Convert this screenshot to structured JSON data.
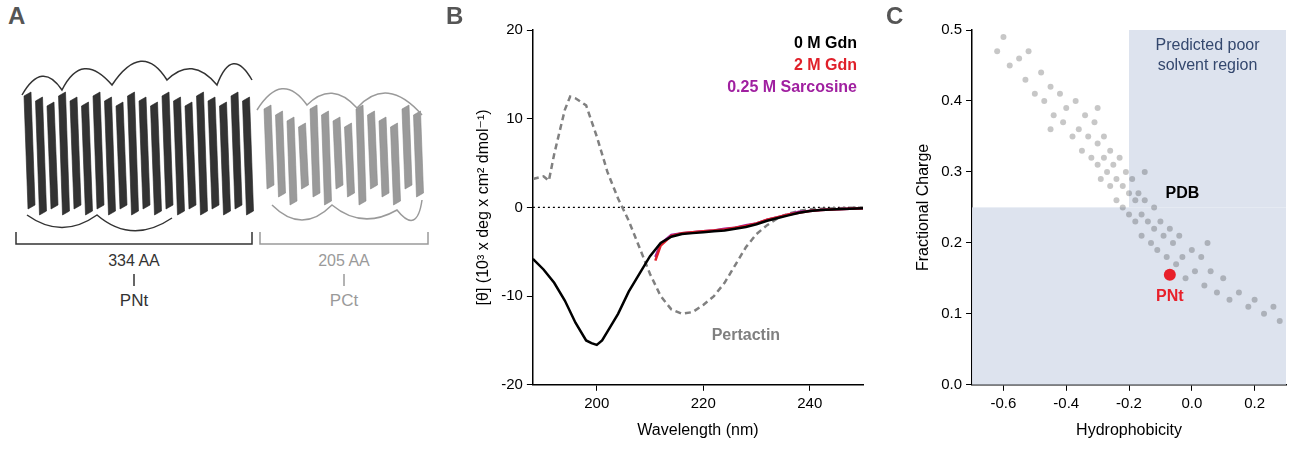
{
  "panel_A": {
    "letter": "A",
    "segments": [
      {
        "length_label": "334 AA",
        "name": "PNt",
        "color": "#333333"
      },
      {
        "length_label": "205 AA",
        "name": "PCt",
        "color": "#9a9a9a"
      }
    ]
  },
  "chart_data": [
    {
      "letter": "B",
      "type": "line",
      "x_label": "Wavelength (nm)",
      "y_label": "[θ] (10³ x deg x cm² dmol⁻¹)",
      "xlim": [
        188,
        250
      ],
      "xticks": [
        200,
        220,
        240
      ],
      "ylim": [
        -20,
        20
      ],
      "yticks": [
        -20,
        -10,
        0,
        10,
        20
      ],
      "grid": false,
      "legend": "upper right",
      "reference_lines": [
        0
      ],
      "series": [
        {
          "name": "0 M Gdn",
          "color": "#000000",
          "line_style": "solid",
          "x": [
            188,
            190,
            192,
            194,
            196,
            198,
            199,
            200,
            201,
            202,
            204,
            206,
            208,
            210,
            212,
            214,
            216,
            218,
            220,
            222,
            224,
            226,
            228,
            230,
            232,
            234,
            236,
            238,
            240,
            242,
            245,
            250
          ],
          "values": [
            -5.8,
            -7,
            -8.5,
            -10.5,
            -13,
            -15,
            -15.3,
            -15.5,
            -15,
            -14,
            -12,
            -9.5,
            -7.5,
            -5.5,
            -4,
            -3.3,
            -3,
            -2.9,
            -2.8,
            -2.7,
            -2.6,
            -2.4,
            -2.2,
            -1.9,
            -1.5,
            -1.2,
            -0.9,
            -0.6,
            -0.4,
            -0.3,
            -0.2,
            -0.1
          ]
        },
        {
          "name": "2 M Gdn",
          "color": "#e0202a",
          "line_style": "solid",
          "x": [
            211,
            212,
            214,
            216,
            218,
            220,
            222,
            224,
            226,
            228,
            230,
            232,
            234,
            236,
            238,
            240,
            242,
            245,
            250
          ],
          "values": [
            -6,
            -4.3,
            -3.2,
            -2.9,
            -2.8,
            -2.7,
            -2.6,
            -2.5,
            -2.3,
            -2.1,
            -1.8,
            -1.4,
            -1.1,
            -0.8,
            -0.6,
            -0.4,
            -0.3,
            -0.2,
            -0.1
          ]
        },
        {
          "name": "0.25 M Sarcosine",
          "color": "#a020a0",
          "line_style": "solid",
          "x": [
            211,
            212,
            214,
            216,
            218,
            220,
            222,
            224,
            226,
            228,
            230,
            232,
            234,
            236,
            238,
            240,
            242,
            245,
            250
          ],
          "values": [
            -5.6,
            -4.1,
            -3.1,
            -2.9,
            -2.8,
            -2.7,
            -2.6,
            -2.4,
            -2.3,
            -2.0,
            -1.8,
            -1.4,
            -1.1,
            -0.8,
            -0.5,
            -0.4,
            -0.3,
            -0.2,
            -0.1
          ]
        },
        {
          "color": "#808080",
          "line_style": "dashed",
          "x": [
            188,
            190,
            191,
            192,
            194,
            195,
            196,
            198,
            200,
            202,
            204,
            206,
            208,
            210,
            212,
            214,
            216,
            218,
            220,
            222,
            224,
            226,
            228,
            230,
            232,
            234,
            236,
            238,
            240,
            245,
            250
          ],
          "values": [
            3.2,
            3.5,
            3,
            6,
            11,
            12.5,
            12.3,
            11.5,
            8,
            4,
            1,
            -1.5,
            -4.5,
            -7.5,
            -10,
            -11.5,
            -12,
            -11.8,
            -11,
            -10,
            -8.5,
            -6.5,
            -4.5,
            -3,
            -2,
            -1.2,
            -0.7,
            -0.4,
            -0.2,
            -0.1,
            0
          ]
        }
      ],
      "annotations": [
        {
          "text": "Pertactin",
          "x": 228,
          "y": -14.5,
          "color": "#808080"
        }
      ]
    },
    {
      "letter": "C",
      "type": "scatter",
      "x_label": "Hydrophobicity",
      "y_label": "Fractional Charge",
      "xlim": [
        -0.7,
        0.3
      ],
      "xticks": [
        -0.6,
        -0.4,
        -0.2,
        {
          "value": 0,
          "label": "0.0"
        },
        0.2
      ],
      "ylim": [
        0,
        0.5
      ],
      "yticks": [
        {
          "value": 0,
          "label": "0.0"
        },
        0.1,
        0.2,
        0.3,
        0.4,
        0.5
      ],
      "grid": false,
      "regions": [
        {
          "text": "Predicted poor solvent region",
          "color": "#dde3ee",
          "boxes": [
            {
              "xlim": [
                -0.2,
                0.3
              ],
              "ylim": [
                0.25,
                0.5
              ]
            },
            {
              "xlim": [
                -0.7,
                0.3
              ],
              "ylim": [
                0,
                0.25
              ]
            }
          ]
        }
      ],
      "series": [
        {
          "color": "#e8202a",
          "marker": "circle",
          "x": [
            -0.07
          ],
          "values": [
            0.155
          ]
        },
        {
          "color": "#000000",
          "marker": "dot",
          "x": [
            -0.62,
            -0.6,
            -0.58,
            -0.55,
            -0.53,
            -0.52,
            -0.5,
            -0.48,
            -0.47,
            -0.45,
            -0.45,
            -0.44,
            -0.42,
            -0.41,
            -0.4,
            -0.38,
            -0.37,
            -0.36,
            -0.35,
            -0.34,
            -0.33,
            -0.32,
            -0.31,
            -0.3,
            -0.3,
            -0.3,
            -0.29,
            -0.28,
            -0.28,
            -0.27,
            -0.26,
            -0.26,
            -0.25,
            -0.24,
            -0.24,
            -0.23,
            -0.22,
            -0.22,
            -0.21,
            -0.2,
            -0.2,
            -0.19,
            -0.18,
            -0.18,
            -0.17,
            -0.16,
            -0.16,
            -0.15,
            -0.15,
            -0.14,
            -0.13,
            -0.12,
            -0.12,
            -0.11,
            -0.1,
            -0.09,
            -0.08,
            -0.07,
            -0.06,
            -0.05,
            -0.04,
            -0.03,
            -0.02,
            0.0,
            0.01,
            0.03,
            0.04,
            0.05,
            0.06,
            0.08,
            0.1,
            0.12,
            0.15,
            0.18,
            0.2,
            0.23,
            0.26,
            0.28
          ],
          "values": [
            0.47,
            0.49,
            0.45,
            0.46,
            0.43,
            0.47,
            0.41,
            0.44,
            0.4,
            0.42,
            0.36,
            0.38,
            0.41,
            0.37,
            0.39,
            0.35,
            0.4,
            0.36,
            0.33,
            0.38,
            0.35,
            0.32,
            0.37,
            0.34,
            0.31,
            0.39,
            0.29,
            0.35,
            0.32,
            0.3,
            0.33,
            0.28,
            0.31,
            0.29,
            0.26,
            0.32,
            0.28,
            0.25,
            0.3,
            0.27,
            0.24,
            0.29,
            0.26,
            0.23,
            0.27,
            0.24,
            0.21,
            0.26,
            0.3,
            0.23,
            0.2,
            0.25,
            0.22,
            0.19,
            0.23,
            0.21,
            0.18,
            0.22,
            0.2,
            0.17,
            0.21,
            0.18,
            0.15,
            0.19,
            0.16,
            0.18,
            0.14,
            0.2,
            0.16,
            0.13,
            0.15,
            0.12,
            0.13,
            0.11,
            0.12,
            0.1,
            0.11,
            0.09
          ]
        }
      ],
      "annotations": [
        {
          "text": "PDB",
          "x": -0.03,
          "y": 0.27,
          "color": "#000000"
        },
        {
          "text": "PNt",
          "x": -0.07,
          "y": 0.125,
          "color": "#e8202a"
        }
      ]
    }
  ]
}
